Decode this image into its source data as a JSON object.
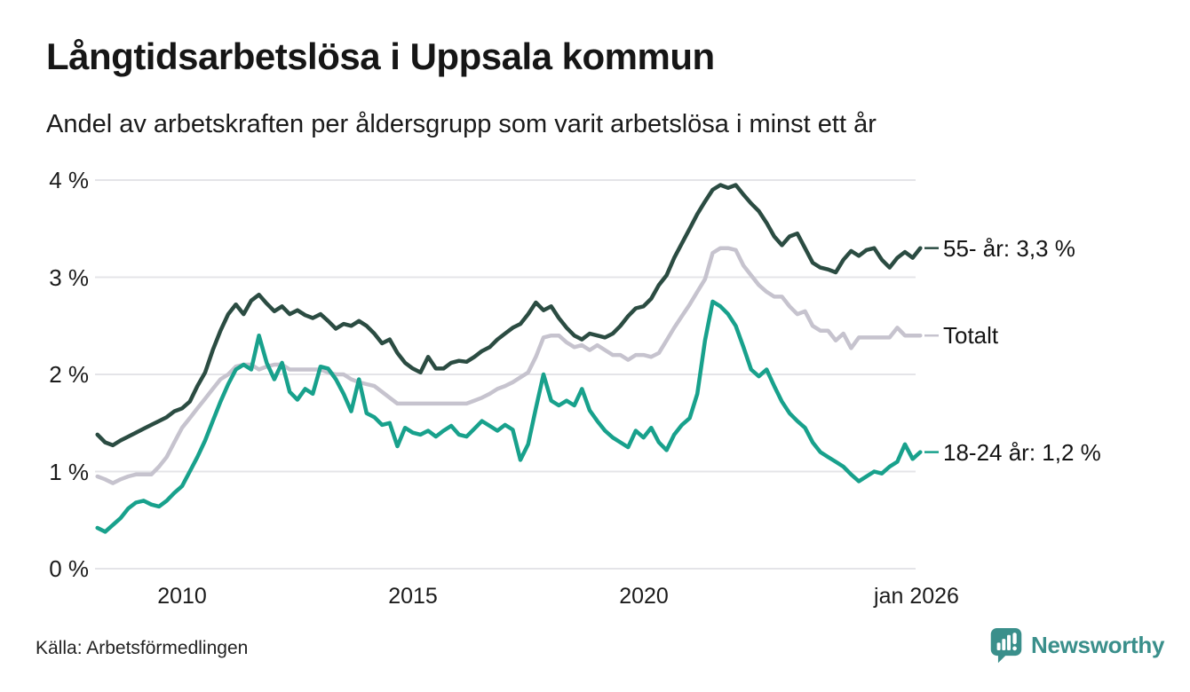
{
  "chart_data": {
    "type": "line",
    "title": "Långtidsarbetslösa i Uppsala kommun",
    "subtitle": "Andel av arbetskraften per åldersgrupp som varit arbetslösa i minst ett år",
    "grid": "horizontal",
    "legend_position": "end-of-line-labels",
    "ylim": [
      0,
      4.3
    ],
    "x_axis": {
      "start_year": 2008.1667,
      "step_years": 0.16667,
      "end_year": 2026.0,
      "ticks": [
        {
          "year": 2010,
          "label": "2010"
        },
        {
          "year": 2015,
          "label": "2015"
        },
        {
          "year": 2020,
          "label": "2020"
        },
        {
          "year": 2026,
          "label": "jan 2026"
        }
      ]
    },
    "y_axis": {
      "values": [
        0,
        1,
        2,
        3,
        4
      ],
      "labels": [
        "0 %",
        "1 %",
        "2 %",
        "3 %",
        "4 %"
      ]
    },
    "series": [
      {
        "id": "55plus",
        "name": "55- år",
        "end_label": "55- år: 3,3 %",
        "end_value_text": "3,3 %",
        "color": "#2B4C42",
        "values": [
          1.38,
          1.3,
          1.27,
          1.32,
          1.36,
          1.4,
          1.44,
          1.48,
          1.52,
          1.56,
          1.62,
          1.65,
          1.72,
          1.88,
          2.02,
          2.25,
          2.45,
          2.62,
          2.72,
          2.62,
          2.76,
          2.82,
          2.73,
          2.65,
          2.7,
          2.62,
          2.66,
          2.61,
          2.58,
          2.62,
          2.55,
          2.47,
          2.52,
          2.5,
          2.55,
          2.5,
          2.42,
          2.32,
          2.36,
          2.22,
          2.12,
          2.06,
          2.02,
          2.18,
          2.06,
          2.06,
          2.12,
          2.14,
          2.13,
          2.18,
          2.24,
          2.28,
          2.36,
          2.42,
          2.48,
          2.52,
          2.62,
          2.74,
          2.66,
          2.7,
          2.58,
          2.48,
          2.4,
          2.36,
          2.42,
          2.4,
          2.38,
          2.42,
          2.5,
          2.6,
          2.68,
          2.7,
          2.78,
          2.92,
          3.02,
          3.2,
          3.35,
          3.5,
          3.65,
          3.78,
          3.9,
          3.95,
          3.92,
          3.95,
          3.85,
          3.76,
          3.68,
          3.56,
          3.42,
          3.33,
          3.42,
          3.45,
          3.3,
          3.15,
          3.1,
          3.08,
          3.05,
          3.18,
          3.27,
          3.22,
          3.28,
          3.3,
          3.18,
          3.1,
          3.2,
          3.26,
          3.2,
          3.3
        ]
      },
      {
        "id": "total",
        "name": "Totalt",
        "end_label": "Totalt",
        "end_value_text": "",
        "color": "#C6C3CE",
        "values": [
          0.95,
          0.92,
          0.88,
          0.92,
          0.95,
          0.97,
          0.97,
          0.97,
          1.05,
          1.15,
          1.3,
          1.45,
          1.55,
          1.65,
          1.75,
          1.85,
          1.95,
          2.0,
          2.08,
          2.1,
          2.1,
          2.05,
          2.08,
          2.1,
          2.1,
          2.05,
          2.05,
          2.05,
          2.05,
          2.05,
          2.02,
          2.0,
          2.0,
          1.95,
          1.92,
          1.9,
          1.88,
          1.82,
          1.76,
          1.7,
          1.7,
          1.7,
          1.7,
          1.7,
          1.7,
          1.7,
          1.7,
          1.7,
          1.7,
          1.73,
          1.76,
          1.8,
          1.85,
          1.88,
          1.92,
          1.97,
          2.02,
          2.18,
          2.38,
          2.4,
          2.4,
          2.33,
          2.28,
          2.3,
          2.25,
          2.3,
          2.25,
          2.2,
          2.2,
          2.15,
          2.2,
          2.2,
          2.18,
          2.22,
          2.35,
          2.48,
          2.6,
          2.72,
          2.85,
          2.98,
          3.25,
          3.3,
          3.3,
          3.28,
          3.12,
          3.02,
          2.92,
          2.85,
          2.8,
          2.8,
          2.7,
          2.62,
          2.65,
          2.5,
          2.45,
          2.45,
          2.35,
          2.42,
          2.27,
          2.38,
          2.38,
          2.38,
          2.38,
          2.38,
          2.48,
          2.4,
          2.4,
          2.4
        ]
      },
      {
        "id": "1824",
        "name": "18-24 år",
        "end_label": "18-24 år: 1,2 %",
        "end_value_text": "1,2 %",
        "color": "#18A18C",
        "values": [
          0.42,
          0.38,
          0.45,
          0.52,
          0.62,
          0.68,
          0.7,
          0.66,
          0.64,
          0.7,
          0.78,
          0.85,
          1.0,
          1.15,
          1.32,
          1.52,
          1.72,
          1.9,
          2.05,
          2.1,
          2.05,
          2.4,
          2.12,
          1.95,
          2.12,
          1.82,
          1.74,
          1.85,
          1.8,
          2.08,
          2.06,
          1.95,
          1.8,
          1.62,
          1.95,
          1.6,
          1.56,
          1.48,
          1.5,
          1.26,
          1.45,
          1.4,
          1.38,
          1.42,
          1.36,
          1.42,
          1.47,
          1.38,
          1.36,
          1.44,
          1.52,
          1.47,
          1.42,
          1.48,
          1.43,
          1.12,
          1.28,
          1.65,
          2.0,
          1.73,
          1.68,
          1.73,
          1.68,
          1.85,
          1.63,
          1.52,
          1.42,
          1.35,
          1.3,
          1.25,
          1.42,
          1.35,
          1.45,
          1.3,
          1.22,
          1.38,
          1.48,
          1.55,
          1.8,
          2.35,
          2.75,
          2.7,
          2.62,
          2.5,
          2.28,
          2.05,
          1.98,
          2.05,
          1.88,
          1.72,
          1.6,
          1.52,
          1.45,
          1.3,
          1.2,
          1.15,
          1.1,
          1.05,
          0.97,
          0.9,
          0.95,
          1.0,
          0.98,
          1.05,
          1.1,
          1.28,
          1.13,
          1.2
        ]
      }
    ],
    "colors": {
      "grid": "#E4E4E8",
      "text": "#1B1B1B",
      "background": "#FFFFFF"
    }
  },
  "footer": {
    "source": "Källa: Arbetsförmedlingen",
    "brand": "Newsworthy",
    "brand_color": "#3A8F8B"
  }
}
